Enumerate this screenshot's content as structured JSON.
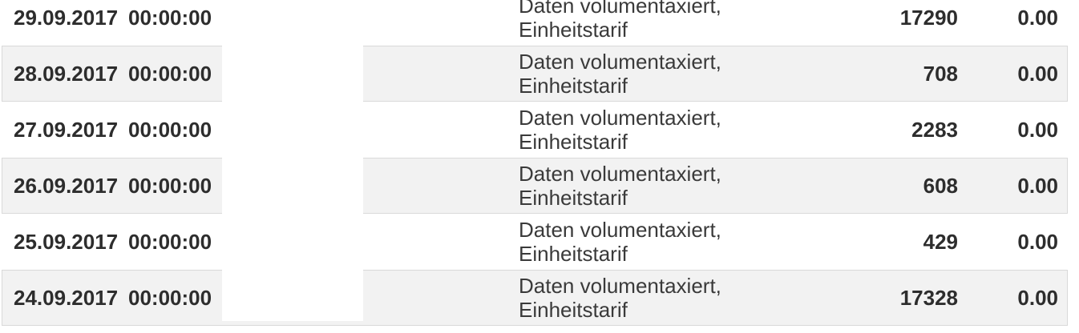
{
  "colors": {
    "stripe": "#f2f2f2",
    "row_border": "#d9d9d9",
    "text_primary": "#2d2d2d",
    "text_secondary": "#3a3a3a",
    "background": "#ffffff"
  },
  "table": {
    "rows": [
      {
        "date": "29.09.2017",
        "time": "00:00:00",
        "description": "Daten volumentaxiert, Einheitstarif",
        "volume": "17290",
        "amount": "0.00"
      },
      {
        "date": "28.09.2017",
        "time": "00:00:00",
        "description": "Daten volumentaxiert, Einheitstarif",
        "volume": "708",
        "amount": "0.00"
      },
      {
        "date": "27.09.2017",
        "time": "00:00:00",
        "description": "Daten volumentaxiert, Einheitstarif",
        "volume": "2283",
        "amount": "0.00"
      },
      {
        "date": "26.09.2017",
        "time": "00:00:00",
        "description": "Daten volumentaxiert, Einheitstarif",
        "volume": "608",
        "amount": "0.00"
      },
      {
        "date": "25.09.2017",
        "time": "00:00:00",
        "description": "Daten volumentaxiert, Einheitstarif",
        "volume": "429",
        "amount": "0.00"
      },
      {
        "date": "24.09.2017",
        "time": "00:00:00",
        "description": "Daten volumentaxiert, Einheitstarif",
        "volume": "17328",
        "amount": "0.00"
      }
    ]
  }
}
